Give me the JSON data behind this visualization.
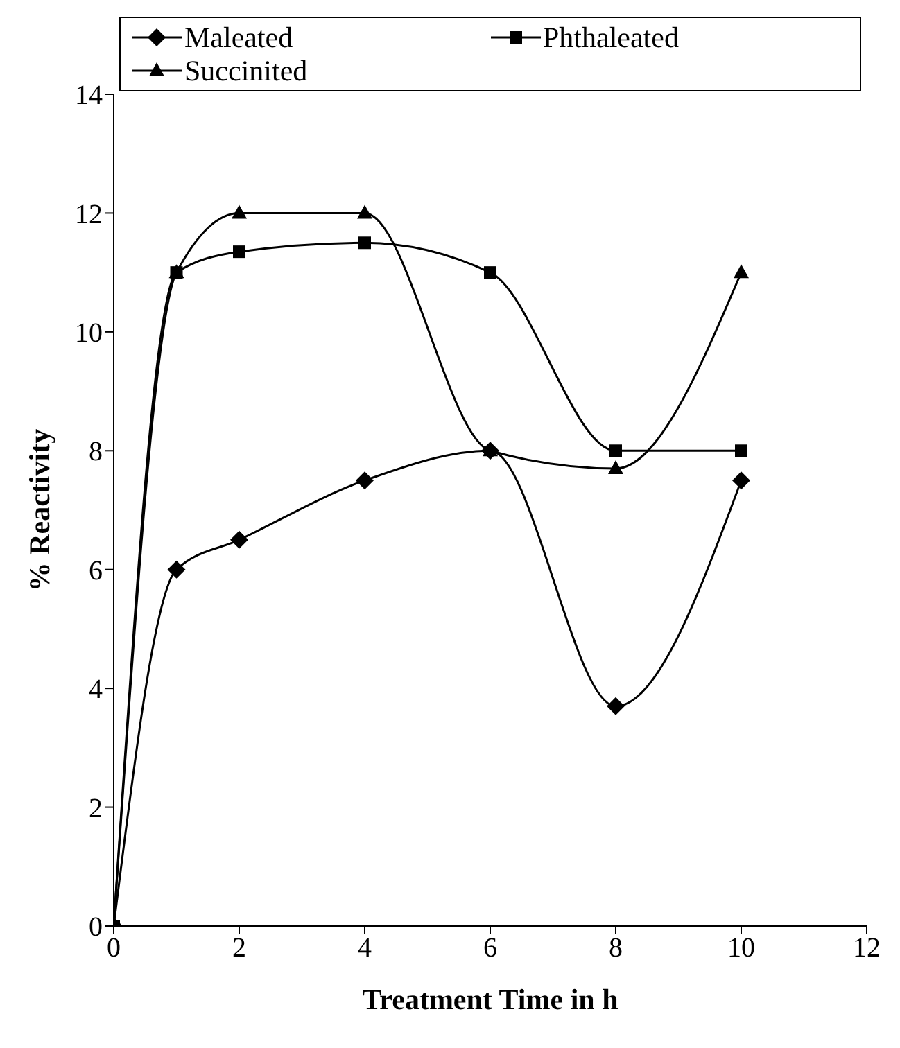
{
  "chart_data": {
    "type": "line",
    "xlabel": "Treatment Time in h",
    "ylabel": "% Reactivity",
    "x": [
      0,
      1,
      2,
      4,
      6,
      8,
      10
    ],
    "series": [
      {
        "name": "Maleated",
        "color": "#000000",
        "marker": "diamond",
        "values": [
          0,
          6,
          6.5,
          7.5,
          8,
          3.7,
          7.5
        ]
      },
      {
        "name": "Phthaleated",
        "color": "#000000",
        "marker": "square",
        "values": [
          0,
          11,
          11.35,
          11.5,
          11,
          8,
          8
        ]
      },
      {
        "name": "Succinited",
        "color": "#000000",
        "marker": "triangle",
        "values": [
          0,
          11,
          12,
          12,
          8,
          7.7,
          11
        ]
      }
    ],
    "xlim": [
      0,
      12
    ],
    "xticks": [
      0,
      2,
      4,
      6,
      8,
      10,
      12
    ],
    "ylim": [
      0,
      14
    ],
    "yticks": [
      0,
      2,
      4,
      6,
      8,
      10,
      12,
      14
    ],
    "grid": false,
    "legend": "top",
    "line_style": "solid"
  }
}
